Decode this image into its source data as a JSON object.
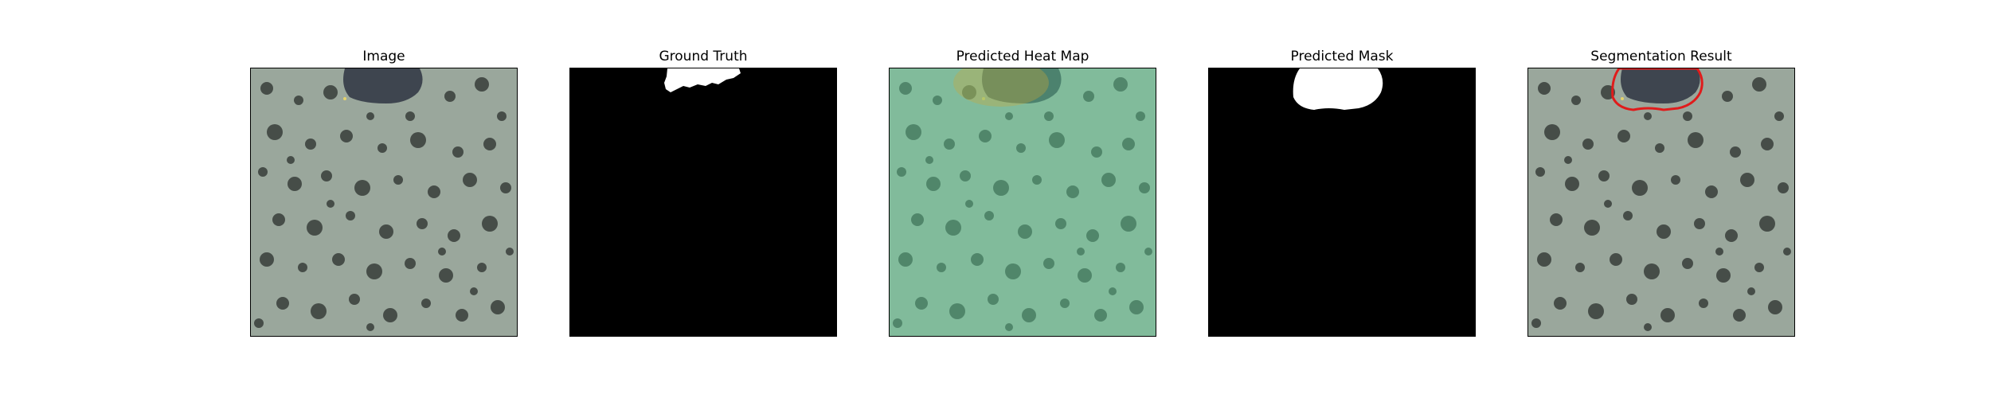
{
  "figure": {
    "panels": [
      {
        "title": "Image",
        "kind": "texture"
      },
      {
        "title": "Ground Truth",
        "kind": "mask-gt"
      },
      {
        "title": "Predicted Heat Map",
        "kind": "heatmap"
      },
      {
        "title": "Predicted Mask",
        "kind": "mask-pred"
      },
      {
        "title": "Segmentation Result",
        "kind": "overlay"
      }
    ],
    "colors": {
      "background": "#9aa79c",
      "spots": "#3e4440",
      "defect": "#2e3442",
      "heat_tint": "#67d4a0",
      "heat_hot": "#b9a53b",
      "mask_fg": "#ffffff",
      "mask_bg": "#000000",
      "contour": "#e01b1b"
    }
  }
}
